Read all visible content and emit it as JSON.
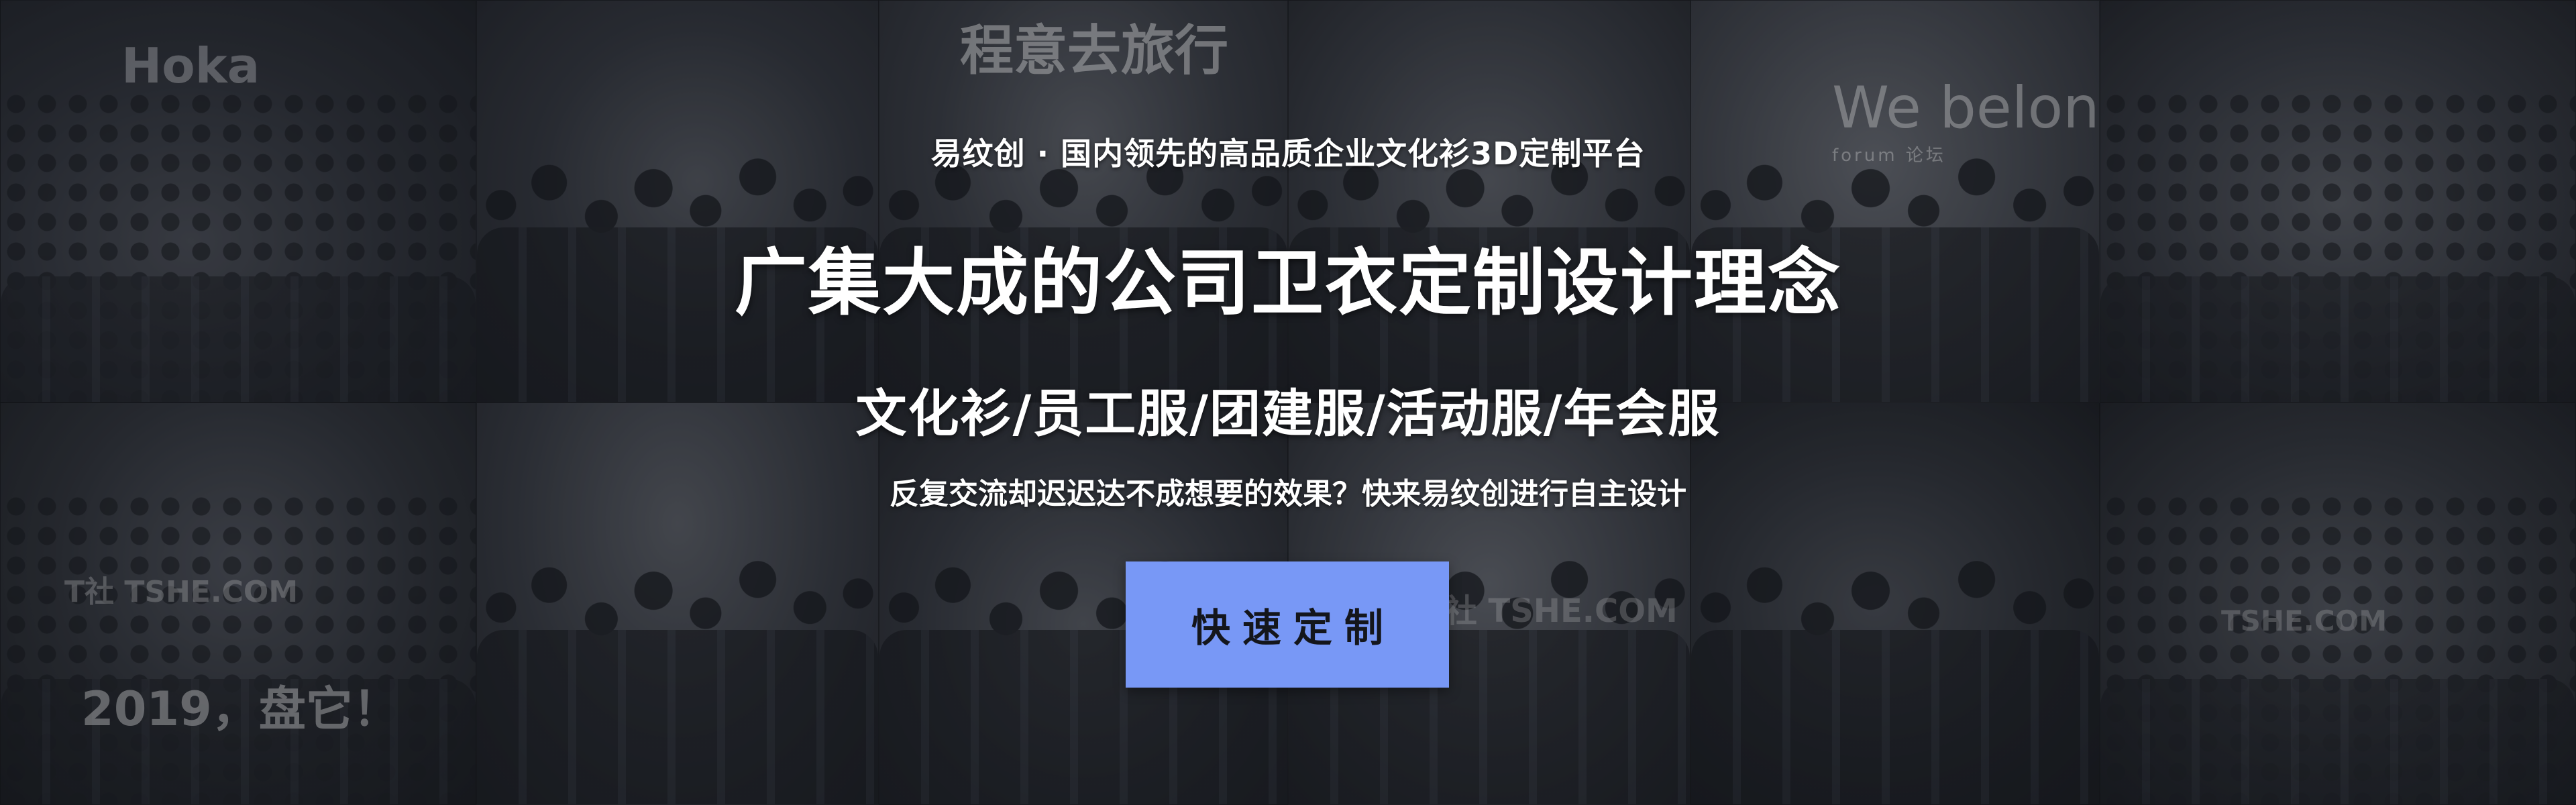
{
  "hero": {
    "tagline": "易纹创 · 国内领先的高品质企业文化衫3D定制平台",
    "headline": "广集大成的公司卫衣定制设计理念",
    "categories": "文化衫/员工服/团建服/活动服/年会服",
    "question": "反复交流却迟迟达不成想要的效果？快来易纹创进行自主设计",
    "cta_label": "快速定制",
    "cta_color": "#7898f6"
  },
  "background_photos": {
    "signs": {
      "hoka": "Hoka",
      "calligraphy": "程意去旅行",
      "belong_main": "We belong",
      "belong_sub": "forum 论坛",
      "year": "2019，盘它！",
      "watermark_1": "T社 TSHE.COM",
      "watermark_2": "T社 TSHE.COM",
      "watermark_3": "TSHE.COM"
    }
  }
}
